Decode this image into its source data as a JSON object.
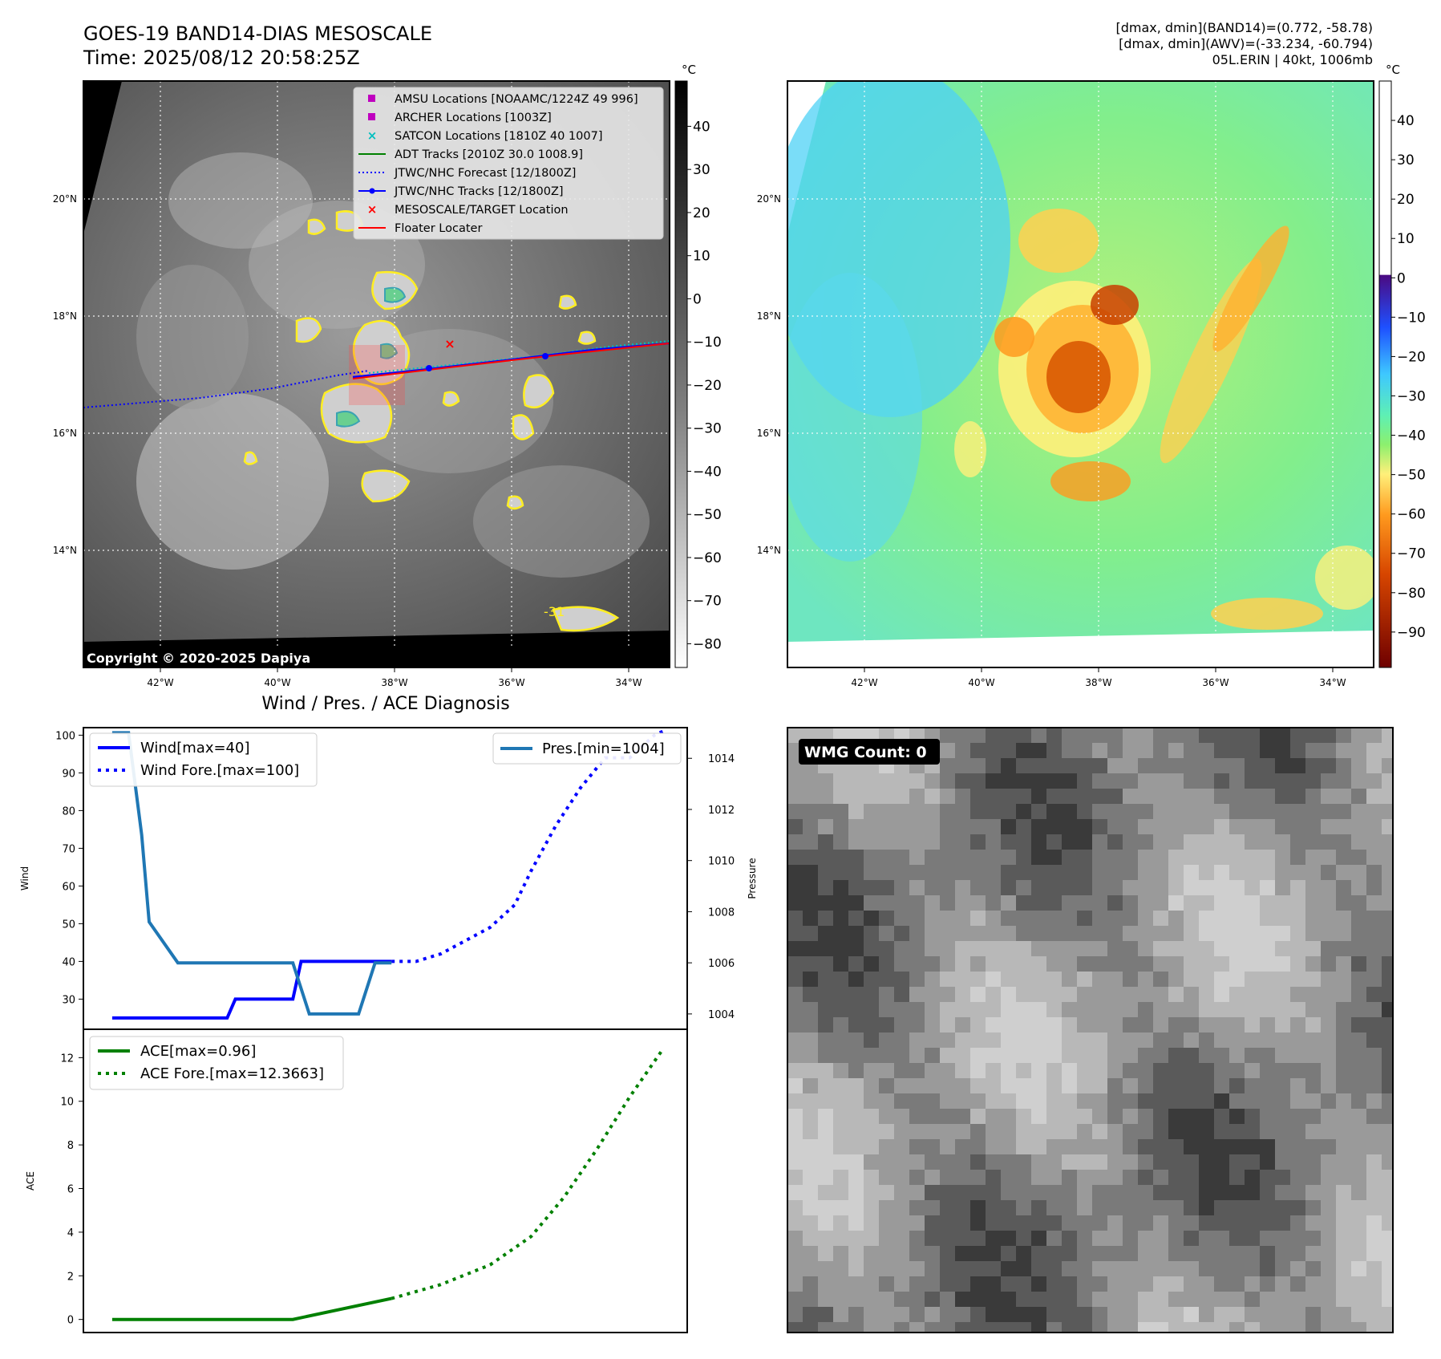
{
  "header": {
    "title_line1": "GOES-19 BAND14-DIAS MESOSCALE",
    "title_line2": "Time: 2025/08/12 20:58:25Z",
    "info_line1": "[dmax, dmin](BAND14)=(0.772, -58.78)",
    "info_line2": "[dmax, dmin](AWV)=(-33.234, -60.794)",
    "info_line3": "05L.ERIN | 40kt, 1006mb"
  },
  "maps": {
    "lon_ticks": [
      "42°W",
      "40°W",
      "38°W",
      "36°W",
      "34°W"
    ],
    "lat_ticks": [
      "20°N",
      "18°N",
      "16°N",
      "14°N"
    ],
    "unit": "°C",
    "copyright": "Copyright © 2020-2025 Dapiya",
    "contour_label": "-31",
    "ir_colorbar_ticks": [
      "40",
      "30",
      "20",
      "10",
      "0",
      "−10",
      "−20",
      "−30",
      "−40",
      "−50",
      "−60",
      "−70",
      "−80"
    ],
    "wv_colorbar_ticks": [
      "40",
      "30",
      "20",
      "10",
      "0",
      "−10",
      "−20",
      "−30",
      "−40",
      "−50",
      "−60",
      "−70",
      "−80",
      "−90"
    ],
    "legend": [
      {
        "label": "AMSU Locations [NOAAMC/1224Z 49 996]",
        "marker": "square",
        "color": "#bf00bf"
      },
      {
        "label": "ARCHER Locations [1003Z]",
        "marker": "square",
        "color": "#bf00bf"
      },
      {
        "label": "SATCON Locations [1810Z 40 1007]",
        "marker": "x",
        "color": "#00bfbf"
      },
      {
        "label": "ADT Tracks [2010Z 30.0 1008.9]",
        "marker": "line",
        "color": "#008000"
      },
      {
        "label": "JTWC/NHC Forecast [12/1800Z]",
        "marker": "dotted",
        "color": "#0000ff"
      },
      {
        "label": "JTWC/NHC Tracks [12/1800Z]",
        "marker": "line-dot",
        "color": "#0000ff"
      },
      {
        "label": "MESOSCALE/TARGET Location",
        "marker": "x",
        "color": "#ff0000"
      },
      {
        "label": "Floater Locater",
        "marker": "line",
        "color": "#ff0000"
      }
    ]
  },
  "wmg": {
    "badge": "WMG Count: 0"
  },
  "chart_data": [
    {
      "type": "line",
      "title": "Wind / Pres. / ACE Diagnosis",
      "ylabel": "Wind",
      "ylabel_right": "Pressure",
      "ylim": [
        22,
        102
      ],
      "ylim_right": [
        1003.4,
        1015.2
      ],
      "yticks": [
        30,
        40,
        50,
        60,
        70,
        80,
        90,
        100
      ],
      "yticks_right": [
        1004,
        1006,
        1008,
        1010,
        1012,
        1014
      ],
      "series": [
        {
          "name": "Wind[max=40]",
          "color": "#0000ff",
          "style": "solid",
          "axis": "left",
          "x": [
            0,
            14,
            15,
            22,
            23,
            29,
            30,
            34
          ],
          "values": [
            25,
            25,
            30,
            30,
            40,
            40,
            40,
            40
          ]
        },
        {
          "name": "Wind Fore.[max=100]",
          "color": "#0000ff",
          "style": "dotted",
          "axis": "left",
          "x": [
            34,
            37,
            40,
            46,
            49,
            51,
            54,
            57,
            60,
            63,
            66,
            67
          ],
          "values": [
            40,
            40,
            42,
            49,
            55,
            64,
            76,
            86,
            94,
            94,
            100,
            101
          ]
        },
        {
          "name": "Pres.[min=1004]",
          "color": "#1f77b4",
          "style": "solid",
          "axis": "right",
          "x": [
            0,
            2,
            3.6,
            4.5,
            8,
            22,
            24,
            30,
            32,
            34
          ],
          "values": [
            1015,
            1015,
            1011,
            1007.6,
            1006,
            1006,
            1004,
            1004,
            1006,
            1006
          ]
        }
      ]
    },
    {
      "type": "line",
      "ylabel": "ACE",
      "ylim": [
        -0.6,
        13.3
      ],
      "yticks": [
        0,
        2,
        4,
        6,
        8,
        10,
        12
      ],
      "series": [
        {
          "name": "ACE[max=0.96]",
          "color": "#008000",
          "style": "solid",
          "x": [
            0,
            22,
            34
          ],
          "values": [
            0,
            0,
            0.96
          ]
        },
        {
          "name": "ACE Fore.[max=12.3663]",
          "color": "#008000",
          "style": "dotted",
          "x": [
            34,
            40,
            46,
            51,
            55,
            59,
            63,
            67
          ],
          "values": [
            0.96,
            1.6,
            2.5,
            3.8,
            5.6,
            7.8,
            10.2,
            12.37
          ]
        }
      ]
    }
  ]
}
